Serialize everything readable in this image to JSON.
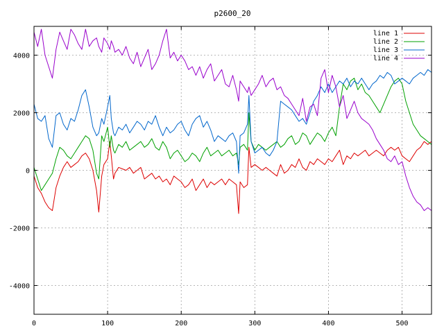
{
  "chart_data": {
    "type": "line",
    "title": "p2600_20",
    "xlabel": "",
    "ylabel": "",
    "xlim": [
      0,
      540
    ],
    "ylim": [
      -5000,
      5000
    ],
    "xticks": [
      0,
      100,
      200,
      300,
      400,
      500
    ],
    "yticks": [
      -4000,
      -2000,
      0,
      2000,
      4000
    ],
    "xtick_labels": [
      "0",
      "100",
      "200",
      "300",
      "400",
      "500"
    ],
    "ytick_labels": [
      "-4000",
      "-2000",
      "0",
      "2000",
      "4000"
    ],
    "grid": true,
    "legend_position": "top-right",
    "series": [
      {
        "name": "line 1",
        "color": "#dd0000",
        "x": [
          0,
          5,
          10,
          15,
          20,
          25,
          30,
          35,
          40,
          45,
          50,
          55,
          60,
          65,
          70,
          75,
          80,
          85,
          88,
          92,
          95,
          100,
          103,
          105,
          108,
          110,
          115,
          120,
          125,
          130,
          135,
          140,
          145,
          150,
          155,
          160,
          165,
          170,
          175,
          180,
          185,
          190,
          195,
          200,
          205,
          210,
          215,
          220,
          225,
          230,
          235,
          240,
          245,
          250,
          255,
          260,
          265,
          270,
          275,
          278,
          280,
          285,
          290,
          292,
          295,
          300,
          305,
          310,
          315,
          320,
          325,
          330,
          335,
          340,
          345,
          350,
          355,
          360,
          365,
          370,
          375,
          380,
          385,
          390,
          395,
          400,
          405,
          410,
          415,
          420,
          425,
          430,
          435,
          440,
          445,
          450,
          455,
          460,
          465,
          470,
          475,
          480,
          485,
          490,
          495,
          500,
          505,
          510,
          515,
          520,
          525,
          530,
          535,
          540
        ],
        "y": [
          -200,
          -600,
          -800,
          -1100,
          -1300,
          -1400,
          -600,
          -200,
          100,
          300,
          100,
          200,
          300,
          500,
          600,
          400,
          0,
          -700,
          -1450,
          -200,
          200,
          400,
          1000,
          500,
          -300,
          -100,
          100,
          50,
          0,
          100,
          -100,
          0,
          100,
          -300,
          -200,
          -100,
          -300,
          -200,
          -400,
          -300,
          -500,
          -200,
          -300,
          -400,
          -600,
          -500,
          -300,
          -700,
          -500,
          -300,
          -600,
          -400,
          -500,
          -400,
          -300,
          -500,
          -300,
          -400,
          -500,
          -1500,
          -400,
          -600,
          -500,
          800,
          100,
          200,
          100,
          0,
          100,
          0,
          -100,
          -200,
          200,
          -100,
          0,
          200,
          100,
          400,
          100,
          0,
          300,
          200,
          400,
          300,
          200,
          400,
          300,
          500,
          700,
          200,
          500,
          400,
          600,
          500,
          600,
          700,
          500,
          600,
          700,
          600,
          500,
          700,
          800,
          700,
          800,
          500,
          400,
          300,
          500,
          700,
          800,
          1000,
          900,
          1000
        ]
      },
      {
        "name": "line 2",
        "color": "#00a000",
        "x": [
          0,
          5,
          10,
          15,
          20,
          25,
          30,
          35,
          40,
          45,
          50,
          55,
          60,
          65,
          70,
          75,
          80,
          85,
          88,
          92,
          95,
          100,
          103,
          105,
          108,
          110,
          115,
          120,
          125,
          130,
          135,
          140,
          145,
          150,
          155,
          160,
          165,
          170,
          175,
          180,
          185,
          190,
          195,
          200,
          205,
          210,
          215,
          220,
          225,
          230,
          235,
          240,
          245,
          250,
          255,
          260,
          265,
          270,
          275,
          278,
          280,
          285,
          290,
          292,
          295,
          300,
          305,
          310,
          315,
          320,
          325,
          330,
          335,
          340,
          345,
          350,
          355,
          360,
          365,
          370,
          375,
          380,
          385,
          390,
          395,
          400,
          405,
          410,
          415,
          420,
          425,
          430,
          435,
          440,
          445,
          450,
          455,
          460,
          465,
          470,
          475,
          480,
          485,
          490,
          495,
          500,
          505,
          510,
          515,
          520,
          525,
          530,
          535,
          540
        ],
        "y": [
          100,
          -300,
          -700,
          -500,
          -300,
          -100,
          400,
          800,
          700,
          500,
          400,
          600,
          800,
          1000,
          1200,
          1100,
          700,
          -100,
          -300,
          1200,
          1000,
          1500,
          800,
          1200,
          700,
          600,
          900,
          800,
          1000,
          700,
          800,
          900,
          1000,
          800,
          900,
          1100,
          800,
          700,
          1000,
          800,
          400,
          600,
          700,
          500,
          300,
          400,
          600,
          500,
          300,
          600,
          800,
          500,
          600,
          700,
          500,
          600,
          700,
          500,
          600,
          200,
          800,
          900,
          700,
          2000,
          1000,
          700,
          900,
          800,
          700,
          800,
          900,
          1000,
          800,
          900,
          1100,
          1200,
          900,
          1000,
          1300,
          1200,
          900,
          1100,
          1300,
          1200,
          1000,
          1300,
          1500,
          1200,
          2200,
          3000,
          2800,
          3100,
          3200,
          2800,
          3000,
          2700,
          2600,
          2400,
          2200,
          2000,
          2300,
          2600,
          2900,
          3100,
          3200,
          3000,
          2400,
          2000,
          1600,
          1400,
          1200,
          1100,
          1000,
          900
        ]
      },
      {
        "name": "line 3",
        "color": "#0066cc",
        "x": [
          0,
          5,
          10,
          15,
          20,
          25,
          30,
          35,
          40,
          45,
          50,
          55,
          60,
          65,
          70,
          75,
          80,
          85,
          88,
          92,
          95,
          100,
          103,
          105,
          108,
          110,
          115,
          120,
          125,
          130,
          135,
          140,
          145,
          150,
          155,
          160,
          165,
          170,
          175,
          180,
          185,
          190,
          195,
          200,
          205,
          210,
          215,
          220,
          225,
          230,
          235,
          240,
          245,
          250,
          255,
          260,
          265,
          270,
          275,
          278,
          280,
          285,
          290,
          292,
          295,
          300,
          305,
          310,
          315,
          320,
          325,
          330,
          335,
          340,
          345,
          350,
          355,
          360,
          365,
          370,
          375,
          380,
          385,
          390,
          395,
          400,
          405,
          410,
          415,
          420,
          425,
          430,
          435,
          440,
          445,
          450,
          455,
          460,
          465,
          470,
          475,
          480,
          485,
          490,
          495,
          500,
          505,
          510,
          515,
          520,
          525,
          530,
          535,
          540
        ],
        "y": [
          2300,
          1800,
          1700,
          1900,
          1100,
          800,
          1900,
          2000,
          1600,
          1400,
          1800,
          1700,
          2100,
          2600,
          2800,
          2200,
          1500,
          1200,
          1300,
          1800,
          1600,
          2200,
          2600,
          1800,
          1300,
          1200,
          1500,
          1400,
          1600,
          1300,
          1500,
          1700,
          1600,
          1400,
          1700,
          1600,
          1900,
          1500,
          1200,
          1500,
          1300,
          1400,
          1600,
          1700,
          1400,
          1200,
          1600,
          1800,
          1900,
          1500,
          1700,
          1400,
          1000,
          1200,
          1100,
          1000,
          1200,
          1300,
          1000,
          -100,
          1200,
          1300,
          1600,
          2600,
          1000,
          600,
          700,
          800,
          600,
          500,
          700,
          1000,
          2400,
          2300,
          2200,
          2100,
          1900,
          1700,
          1800,
          1600,
          2000,
          2400,
          2600,
          2900,
          2700,
          3000,
          2700,
          2900,
          3100,
          3000,
          3200,
          2900,
          3100,
          3000,
          3200,
          3000,
          2800,
          3000,
          3100,
          3300,
          3200,
          3400,
          3300,
          3000,
          3100,
          3200,
          3100,
          3000,
          3200,
          3300,
          3400,
          3300,
          3500,
          3400
        ]
      },
      {
        "name": "line 4",
        "color": "#9900cc",
        "x": [
          0,
          5,
          10,
          15,
          20,
          25,
          30,
          35,
          40,
          45,
          50,
          55,
          60,
          65,
          70,
          75,
          80,
          85,
          88,
          92,
          95,
          100,
          103,
          105,
          108,
          110,
          115,
          120,
          125,
          130,
          135,
          140,
          145,
          150,
          155,
          160,
          165,
          170,
          175,
          180,
          185,
          190,
          195,
          200,
          205,
          210,
          215,
          220,
          225,
          230,
          235,
          240,
          245,
          250,
          255,
          260,
          265,
          270,
          275,
          278,
          280,
          285,
          290,
          292,
          295,
          300,
          305,
          310,
          315,
          320,
          325,
          330,
          335,
          340,
          345,
          350,
          355,
          360,
          365,
          370,
          375,
          380,
          385,
          390,
          395,
          400,
          405,
          410,
          415,
          420,
          425,
          430,
          435,
          440,
          445,
          450,
          455,
          460,
          465,
          470,
          475,
          480,
          485,
          490,
          495,
          500,
          505,
          510,
          515,
          520,
          525,
          530,
          535,
          540
        ],
        "y": [
          4800,
          4300,
          4900,
          4000,
          3600,
          3200,
          4200,
          4800,
          4500,
          4200,
          4900,
          4700,
          4400,
          4200,
          4900,
          4300,
          4500,
          4600,
          4300,
          4100,
          4600,
          4400,
          4200,
          4500,
          4300,
          4100,
          4200,
          4000,
          4300,
          3900,
          3700,
          4100,
          3600,
          3900,
          4200,
          3500,
          3700,
          4000,
          4500,
          4900,
          3900,
          4100,
          3800,
          4000,
          3800,
          3500,
          3600,
          3300,
          3600,
          3200,
          3500,
          3700,
          3100,
          3300,
          3500,
          3000,
          2900,
          3300,
          2800,
          2400,
          3100,
          2900,
          2700,
          2900,
          2600,
          2800,
          3000,
          3300,
          2900,
          3100,
          3200,
          2800,
          2900,
          2600,
          2500,
          2300,
          2100,
          1900,
          2500,
          1700,
          2200,
          2300,
          1900,
          3200,
          3500,
          2700,
          3300,
          2900,
          2200,
          2600,
          1800,
          2100,
          2400,
          2000,
          1800,
          1700,
          1600,
          1400,
          1100,
          900,
          700,
          400,
          300,
          500,
          200,
          300,
          -200,
          -600,
          -900,
          -1100,
          -1200,
          -1400,
          -1300,
          -1400
        ]
      }
    ]
  }
}
